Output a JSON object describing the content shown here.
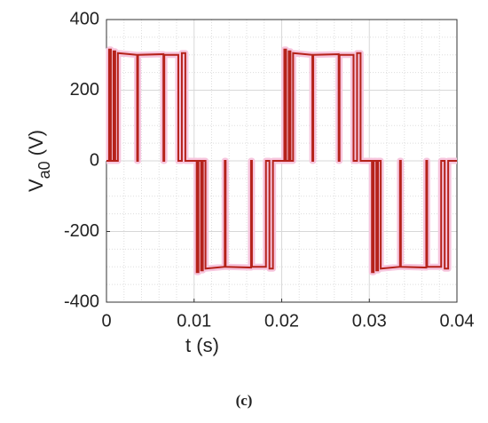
{
  "chart_data": {
    "type": "line",
    "xlabel": "t (s)",
    "ylabel": {
      "main": "V",
      "sub": "a0",
      "unit": "(V)"
    },
    "caption": "(c)",
    "color": "#b5221a",
    "grid": true,
    "minor_grid": true,
    "xlim": [
      0,
      0.04
    ],
    "xticks": [
      0,
      0.01,
      0.02,
      0.03,
      0.04
    ],
    "ylim": [
      -400,
      400
    ],
    "yticks": [
      -400,
      -200,
      0,
      200,
      400
    ],
    "x": [
      0,
      0.0003,
      0.0003,
      0.0005,
      0.0005,
      0.0008,
      0.0008,
      0.001,
      0.001,
      0.0013,
      0.0013,
      0.0035,
      0.0035,
      0.0036,
      0.0036,
      0.0065,
      0.0065,
      0.0066,
      0.0066,
      0.0082,
      0.0082,
      0.0086,
      0.0086,
      0.009,
      0.009,
      0.01,
      0.0103,
      0.0103,
      0.0105,
      0.0105,
      0.0108,
      0.0108,
      0.011,
      0.011,
      0.0113,
      0.0113,
      0.0135,
      0.0135,
      0.0136,
      0.0136,
      0.0165,
      0.0165,
      0.0166,
      0.0166,
      0.0182,
      0.0182,
      0.0186,
      0.0186,
      0.019,
      0.019,
      0.02,
      0.0203,
      0.0203,
      0.0205,
      0.0205,
      0.0208,
      0.0208,
      0.021,
      0.021,
      0.0213,
      0.0213,
      0.0235,
      0.0235,
      0.0236,
      0.0236,
      0.0265,
      0.0265,
      0.0266,
      0.0266,
      0.0282,
      0.0282,
      0.0286,
      0.0286,
      0.029,
      0.029,
      0.03,
      0.0303,
      0.0303,
      0.0305,
      0.0305,
      0.0308,
      0.0308,
      0.031,
      0.031,
      0.0313,
      0.0313,
      0.0335,
      0.0335,
      0.0336,
      0.0336,
      0.0365,
      0.0365,
      0.0366,
      0.0366,
      0.0382,
      0.0382,
      0.0386,
      0.0386,
      0.039,
      0.039,
      0.04
    ],
    "values": [
      0,
      0,
      315,
      315,
      0,
      0,
      310,
      310,
      0,
      0,
      305,
      300,
      0,
      0,
      300,
      302,
      0,
      0,
      300,
      300,
      0,
      0,
      305,
      305,
      0,
      0,
      0,
      -315,
      -315,
      0,
      0,
      -310,
      -310,
      0,
      0,
      -305,
      -300,
      0,
      0,
      -300,
      -302,
      0,
      0,
      -300,
      -300,
      0,
      0,
      -305,
      -305,
      0,
      0,
      0,
      315,
      315,
      0,
      0,
      310,
      310,
      0,
      0,
      305,
      300,
      0,
      0,
      300,
      302,
      0,
      0,
      300,
      300,
      0,
      0,
      305,
      305,
      0,
      0,
      0,
      -315,
      -315,
      0,
      0,
      -310,
      -310,
      0,
      0,
      -305,
      -300,
      0,
      0,
      -300,
      -302,
      0,
      0,
      -300,
      -300,
      0,
      0,
      -305,
      -305,
      0,
      0
    ]
  }
}
